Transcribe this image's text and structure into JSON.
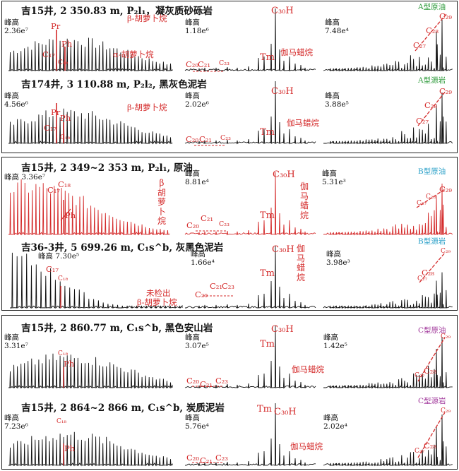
{
  "panels": [
    {
      "rows": [
        {
          "title": "吉15井, 2 350.83 m, P₂l₁，凝灰质砂砾岩",
          "type_label": "A型原油",
          "type_color": "#2f9b3c",
          "peaks": [
            {
              "label": "峰高",
              "value": "2.36e⁷"
            },
            {
              "label": "峰高",
              "value": "1.18e⁶"
            },
            {
              "label": "峰高",
              "value": "7.48e⁴"
            }
          ],
          "annotations": {
            "pr": "Pr",
            "ph": "Ph",
            "c17": "C₁₇",
            "c18": "C₁₈",
            "beta": "β-胡萝卜烷",
            "alpha": "α-胡萝卜烷",
            "c20": "C₂₀",
            "c21": "C₂₁",
            "c23": "C₂₃",
            "tm": "Tm",
            "c30h": "C₃₀H",
            "gam": "伽马蜡烷",
            "c27": "C₂₇",
            "c28": "C₂₈",
            "c29": "C₂₉"
          }
        },
        {
          "title": "吉174井, 3 110.88 m, P₂l₂, 黑灰色泥岩",
          "type_label": "A型源岩",
          "type_color": "#2f9b3c",
          "peaks": [
            {
              "label": "峰高",
              "value": "4.56e⁶"
            },
            {
              "label": "峰高",
              "value": "2.02e⁶"
            },
            {
              "label": "峰高",
              "value": "3.88e⁵"
            }
          ],
          "annotations": {
            "pr": "Pr",
            "ph": "Ph",
            "c17": "C₁₇",
            "c18": "C₁₈",
            "beta": "β-胡萝卜烷",
            "c20": "C₂₀",
            "c21": "C₂₁",
            "c23": "C₂₃",
            "tm": "Tm",
            "c30h": "C₃₀H",
            "gam": "伽马蜡烷",
            "c27": "C₂₇",
            "c28": "C₂₈",
            "c29": "C₂₉"
          }
        }
      ]
    },
    {
      "rows": [
        {
          "title": "吉15井, 2 349~2 353 m, P₂l₁, 原油",
          "type_label": "B型原油",
          "type_color": "#2aa0c8",
          "peaks": [
            {
              "label": "峰高",
              "value": "3.36e⁷"
            },
            {
              "label": "峰高",
              "value": "8.81e⁴"
            },
            {
              "label": "峰高",
              "value": "5.31e³"
            }
          ],
          "annotations": {
            "c17": "C₁₇",
            "c18": "C₁₈",
            "ph": "Ph",
            "beta_v": "β胡萝卜烷",
            "c20": "C₂₀",
            "c21": "C₂₁",
            "c23": "C₂₃",
            "tm": "Tm",
            "c30h": "C₃₀H",
            "gam_v": "伽马蜡烷",
            "c27": "C₂₇",
            "c28": "C₂₈",
            "c29": "C₂₉"
          }
        },
        {
          "title": "吉36-3井, 5 699.26 m, C₁s^b, 灰黑色泥岩",
          "type_label": "B型源岩",
          "type_color": "#2aa0c8",
          "peaks": [
            {
              "label": "峰高",
              "value": "7.30e⁵"
            },
            {
              "label": "峰高",
              "value": "1.66e⁴"
            },
            {
              "label": "峰高",
              "value": "3.98e³"
            }
          ],
          "annotations": {
            "c17": "C₁₇",
            "c18": "C₁₈",
            "no_beta_1": "未检出",
            "no_beta_2": "β-胡萝卜烷",
            "c20": "C₂₀",
            "c21": "C₂₁",
            "c23": "C₂₃",
            "tm": "Tm",
            "c30h": "C₃₀H",
            "gam_v": "伽马蜡烷",
            "c27": "C₂₇",
            "c28": "C₂₈",
            "c29": "C₂₉"
          }
        }
      ]
    },
    {
      "rows": [
        {
          "title": "吉15井, 2 860.77 m, C₁s^b, 黑色安山岩",
          "type_label": "C型原油",
          "type_color": "#a23a9c",
          "peaks": [
            {
              "label": "峰高",
              "value": "3.31e⁷"
            },
            {
              "label": "峰高",
              "value": "3.07e⁵"
            },
            {
              "label": "峰高",
              "value": "1.42e⁵"
            }
          ],
          "annotations": {
            "c18": "C₁₈",
            "ph": "Ph",
            "c20": "C₂₀",
            "c21": "C₂₁",
            "c23": "C₂₃",
            "tm": "Tm",
            "c30h": "C₃₀H",
            "gam": "伽马蜡烷",
            "c27": "C₂₇",
            "c28": "C₂₈",
            "c29": "C₂₉"
          }
        },
        {
          "title": "吉15井, 2 864~2 866 m, C₁s^b, 炭质泥岩",
          "type_label": "C型源岩",
          "type_color": "#a23a9c",
          "peaks": [
            {
              "label": "峰高",
              "value": "7.23e⁶"
            },
            {
              "label": "峰高",
              "value": "5.76e⁴"
            },
            {
              "label": "峰高",
              "value": "2.02e⁴"
            }
          ],
          "annotations": {
            "c18": "C₁₈",
            "ph": "Ph",
            "c20": "C₂₀",
            "c21": "C₂₁",
            "c23": "C₂₃",
            "tm": "Tm",
            "c30h": "C₃₀H",
            "gam": "伽马蜡烷",
            "c27": "C₂₇",
            "c28": "C₂₈",
            "c29": "C₂₉"
          }
        }
      ]
    }
  ]
}
